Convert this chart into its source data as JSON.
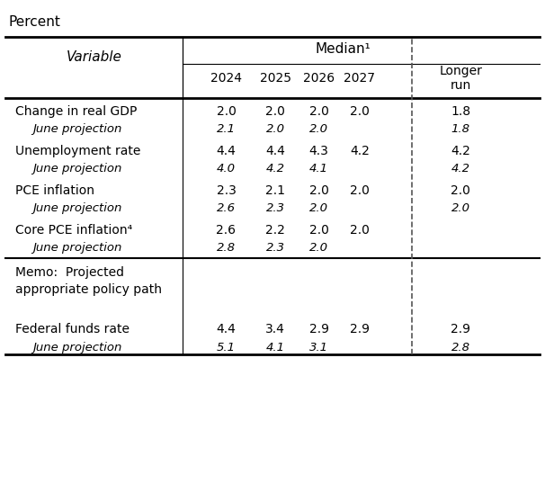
{
  "title": "Percent",
  "header_group": "Median¹",
  "col_headers": [
    "2024",
    "2025",
    "2026",
    "2027",
    "Longer\nrun"
  ],
  "row_label_col": "Variable",
  "rows": [
    {
      "label": "Change in real GDP",
      "sublabel": "June projection",
      "values": [
        "2.0",
        "2.0",
        "2.0",
        "2.0",
        "1.8"
      ],
      "subvalues": [
        "2.1",
        "2.0",
        "2.0",
        "",
        "1.8"
      ]
    },
    {
      "label": "Unemployment rate",
      "sublabel": "June projection",
      "values": [
        "4.4",
        "4.4",
        "4.3",
        "4.2",
        "4.2"
      ],
      "subvalues": [
        "4.0",
        "4.2",
        "4.1",
        "",
        "4.2"
      ]
    },
    {
      "label": "PCE inflation",
      "sublabel": "June projection",
      "values": [
        "2.3",
        "2.1",
        "2.0",
        "2.0",
        "2.0"
      ],
      "subvalues": [
        "2.6",
        "2.3",
        "2.0",
        "",
        "2.0"
      ]
    },
    {
      "label": "Core PCE inflation⁴",
      "sublabel": "June projection",
      "values": [
        "2.6",
        "2.2",
        "2.0",
        "2.0",
        ""
      ],
      "subvalues": [
        "2.8",
        "2.3",
        "2.0",
        "",
        ""
      ]
    }
  ],
  "memo_label": "Memo:  Projected\nappropriate policy path",
  "memo_rows": [
    {
      "label": "Federal funds rate",
      "sublabel": "June projection",
      "values": [
        "4.4",
        "3.4",
        "2.9",
        "2.9",
        "2.9"
      ],
      "subvalues": [
        "5.1",
        "4.1",
        "3.1",
        "",
        "2.8"
      ]
    }
  ],
  "bg_color": "#ffffff",
  "text_color": "#000000",
  "line_color": "#000000",
  "dashed_color": "#555555"
}
